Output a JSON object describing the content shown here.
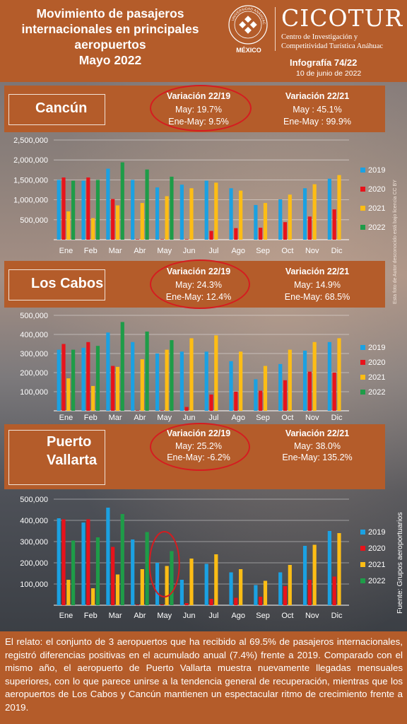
{
  "header": {
    "title_lines": [
      "Movimiento de pasajeros",
      "internacionales en principales",
      "aeropuertos",
      "Mayo 2022"
    ],
    "seal_text": "UNIVERSIDAD ANÁHUAC",
    "seal_country": "MÉXICO",
    "brand": "CICOTUR",
    "brand_sub_1": "Centro de Investigación y",
    "brand_sub_2": "Competitividad Turística Anáhuac",
    "infografia": "Infografía 74/22",
    "date": "10 de junio de 2022"
  },
  "colors": {
    "y2019": "#1ba1e2",
    "y2020": "#e8131b",
    "y2021": "#fdbd15",
    "y2022": "#1e9c48",
    "panel": "#b45c2a"
  },
  "labels": {
    "var2219": "Variación 22/19",
    "var2221": "Variación 22/21",
    "photo_credit": "Esta foto de Autor desconocido está bajo licencia CC BY",
    "source": "Fuente: Grupos aeroportuarios",
    "footer": "El relato: el conjunto de 3 aeropuertos que ha recibido al 69.5% de pasajeros internacionales, registró diferencias positivas en el acumulado anual (7.4%) frente a 2019. Comparado con el mismo año, el aeropuerto de Puerto Vallarta muestra nuevamente llegadas mensuales superiores, con lo que parece unirse a la tendencia general de recuperación, mientras que los aeropuertos de Los Cabos y Cancún mantienen un espectacular ritmo de crecimiento frente a 2019."
  },
  "cities": [
    {
      "name_lines": [
        "Cancún"
      ],
      "v2219_may": "May: 19.7%",
      "v2219_ytd": "Ene-May: 9.5%",
      "v2221_may": "May : 45.1%",
      "v2221_ytd": "Ene-May : 99.9%"
    },
    {
      "name_lines": [
        "Los Cabos"
      ],
      "v2219_may": "May: 24.3%",
      "v2219_ytd": "Ene-May: 12.4%",
      "v2221_may": "May: 14.9%",
      "v2221_ytd": "Ene-May: 68.5%"
    },
    {
      "name_lines": [
        "Puerto",
        "Vallarta"
      ],
      "v2219_may": "May: 25.2%",
      "v2219_ytd": "Ene-May: -6.2%",
      "v2221_may": "May: 38.0%",
      "v2221_ytd": "Ene-May: 135.2%"
    }
  ],
  "chart_data": [
    {
      "type": "bar",
      "title": "Cancún",
      "categories": [
        "Ene",
        "Feb",
        "Mar",
        "Abr",
        "May",
        "Jun",
        "Jul",
        "Ago",
        "Sep",
        "Oct",
        "Nov",
        "Dic"
      ],
      "ylim": [
        0,
        2500000
      ],
      "yticks": [
        500000,
        1000000,
        1500000,
        2000000,
        2500000
      ],
      "ytick_labels": [
        "500,000",
        "1,000,000",
        "1,500,000",
        "2,000,000",
        "2,500,000"
      ],
      "legend": "right",
      "series": [
        {
          "name": "2019",
          "values": [
            1500000,
            1480000,
            1780000,
            1500000,
            1310000,
            1380000,
            1480000,
            1290000,
            870000,
            1010000,
            1290000,
            1530000
          ]
        },
        {
          "name": "2020",
          "values": [
            1560000,
            1560000,
            1020000,
            10000,
            10000,
            10000,
            220000,
            290000,
            300000,
            440000,
            580000,
            760000
          ]
        },
        {
          "name": "2021",
          "values": [
            710000,
            540000,
            860000,
            920000,
            1090000,
            1290000,
            1430000,
            1230000,
            920000,
            1130000,
            1390000,
            1620000
          ]
        },
        {
          "name": "2022",
          "values": [
            1480000,
            1500000,
            1940000,
            1760000,
            1580000,
            null,
            null,
            null,
            null,
            null,
            null,
            null
          ]
        }
      ]
    },
    {
      "type": "bar",
      "title": "Los Cabos",
      "categories": [
        "Ene",
        "Feb",
        "Mar",
        "Abr",
        "May",
        "Jun",
        "Jul",
        "Ago",
        "Sep",
        "Oct",
        "Nov",
        "Dic"
      ],
      "ylim": [
        0,
        500000
      ],
      "yticks": [
        100000,
        200000,
        300000,
        400000,
        500000
      ],
      "ytick_labels": [
        "100,000",
        "200,000",
        "300,000",
        "400,000",
        "500,000"
      ],
      "legend": "right",
      "series": [
        {
          "name": "2019",
          "values": [
            320000,
            330000,
            410000,
            360000,
            300000,
            310000,
            310000,
            260000,
            165000,
            245000,
            315000,
            360000
          ]
        },
        {
          "name": "2020",
          "values": [
            350000,
            360000,
            235000,
            2000,
            2000,
            20000,
            85000,
            100000,
            105000,
            160000,
            205000,
            200000
          ]
        },
        {
          "name": "2021",
          "values": [
            170000,
            130000,
            230000,
            270000,
            320000,
            380000,
            395000,
            310000,
            235000,
            320000,
            360000,
            380000
          ]
        },
        {
          "name": "2022",
          "values": [
            320000,
            340000,
            465000,
            415000,
            370000,
            null,
            null,
            null,
            null,
            null,
            null,
            null
          ]
        }
      ]
    },
    {
      "type": "bar",
      "title": "Puerto Vallarta",
      "categories": [
        "Ene",
        "Feb",
        "Mar",
        "Abr",
        "May",
        "Jun",
        "Jul",
        "Ago",
        "Sep",
        "Oct",
        "Nov",
        "Dic"
      ],
      "ylim": [
        0,
        500000
      ],
      "yticks": [
        100000,
        200000,
        300000,
        400000,
        500000
      ],
      "ytick_labels": [
        "100,000",
        "200,000",
        "300,000",
        "400,000",
        "500,000"
      ],
      "legend": "right",
      "series": [
        {
          "name": "2019",
          "values": [
            410000,
            390000,
            460000,
            310000,
            200000,
            120000,
            195000,
            155000,
            95000,
            155000,
            280000,
            350000
          ]
        },
        {
          "name": "2020",
          "values": [
            405000,
            405000,
            275000,
            3000,
            3000,
            10000,
            30000,
            35000,
            40000,
            90000,
            120000,
            135000
          ]
        },
        {
          "name": "2021",
          "values": [
            120000,
            80000,
            145000,
            170000,
            185000,
            220000,
            240000,
            170000,
            115000,
            190000,
            285000,
            340000
          ]
        },
        {
          "name": "2022",
          "values": [
            305000,
            320000,
            430000,
            345000,
            255000,
            null,
            null,
            null,
            null,
            null,
            null,
            null
          ]
        }
      ]
    }
  ]
}
